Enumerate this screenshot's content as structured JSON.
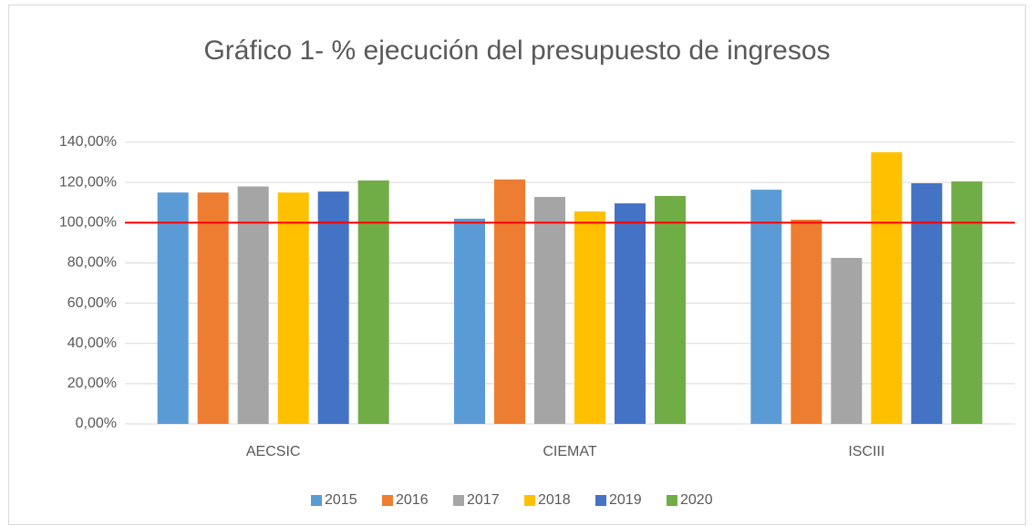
{
  "chart_data": {
    "type": "bar",
    "title": "Gráfico 1- % ejecución del presupuesto de ingresos",
    "categories": [
      "AECSIC",
      "CIEMAT",
      "ISCIII"
    ],
    "series": [
      {
        "name": "2015",
        "color": "#5b9bd5",
        "values": [
          115,
          102,
          116.4
        ]
      },
      {
        "name": "2016",
        "color": "#ed7d31",
        "values": [
          115,
          121.5,
          101.5
        ]
      },
      {
        "name": "2017",
        "color": "#a5a5a5",
        "values": [
          118,
          112.8,
          82.5
        ]
      },
      {
        "name": "2018",
        "color": "#ffc000",
        "values": [
          115,
          105.6,
          135
        ]
      },
      {
        "name": "2019",
        "color": "#4472c4",
        "values": [
          115.5,
          109.6,
          119.6
        ]
      },
      {
        "name": "2020",
        "color": "#70ad47",
        "values": [
          121,
          113.3,
          120.5
        ]
      }
    ],
    "ylim": [
      0,
      140
    ],
    "yticks": [
      {
        "value": 0,
        "label": "0,00%"
      },
      {
        "value": 20,
        "label": "20,00%"
      },
      {
        "value": 40,
        "label": "40,00%"
      },
      {
        "value": 60,
        "label": "60,00%"
      },
      {
        "value": 80,
        "label": "80,00%"
      },
      {
        "value": 100,
        "label": "100,00%"
      },
      {
        "value": 120,
        "label": "120,00%"
      },
      {
        "value": 140,
        "label": "140,00%"
      }
    ],
    "grid": true,
    "legend": "bottom",
    "reference_line": {
      "value": 100,
      "color": "#ff0000"
    }
  }
}
